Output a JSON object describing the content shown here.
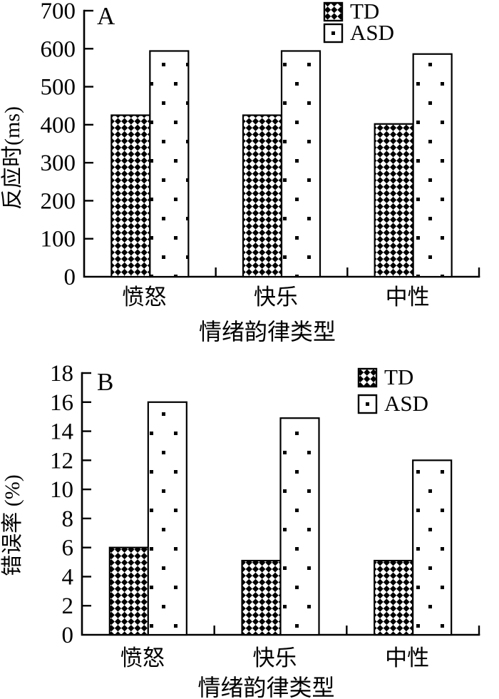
{
  "figure": {
    "background_color": "#ffffff",
    "ink_color": "#000000",
    "description_groups": [
      "TD",
      "ASD"
    ]
  },
  "chart_data": [
    {
      "type": "bar",
      "panel_label": "A",
      "title": "",
      "xlabel": "情绪韵律类型",
      "ylabel": "反应时(ms)",
      "ylim": [
        0,
        700
      ],
      "ytick_step": 100,
      "yticks": [
        "0",
        "100",
        "200",
        "300",
        "400",
        "500",
        "600",
        "700"
      ],
      "categories": [
        "愤怒",
        "快乐",
        "中性"
      ],
      "series": [
        {
          "name": "TD",
          "pattern": "checker",
          "values": [
            425,
            425,
            402
          ]
        },
        {
          "name": "ASD",
          "pattern": "dots",
          "values": [
            594,
            594,
            586
          ]
        }
      ],
      "legend_position": "top-right",
      "grid": false
    },
    {
      "type": "bar",
      "panel_label": "B",
      "title": "",
      "xlabel": "情绪韵律类型",
      "ylabel": "错误率 (%)",
      "ylim": [
        0,
        18
      ],
      "ytick_step": 2,
      "yticks": [
        "0",
        "2",
        "4",
        "6",
        "8",
        "10",
        "12",
        "14",
        "16",
        "18"
      ],
      "categories": [
        "愤怒",
        "快乐",
        "中性"
      ],
      "series": [
        {
          "name": "TD",
          "pattern": "checker",
          "values": [
            6,
            5.1,
            5.1
          ]
        },
        {
          "name": "ASD",
          "pattern": "dots",
          "values": [
            16,
            14.9,
            12
          ]
        }
      ],
      "legend_position": "top-right",
      "grid": false
    }
  ]
}
